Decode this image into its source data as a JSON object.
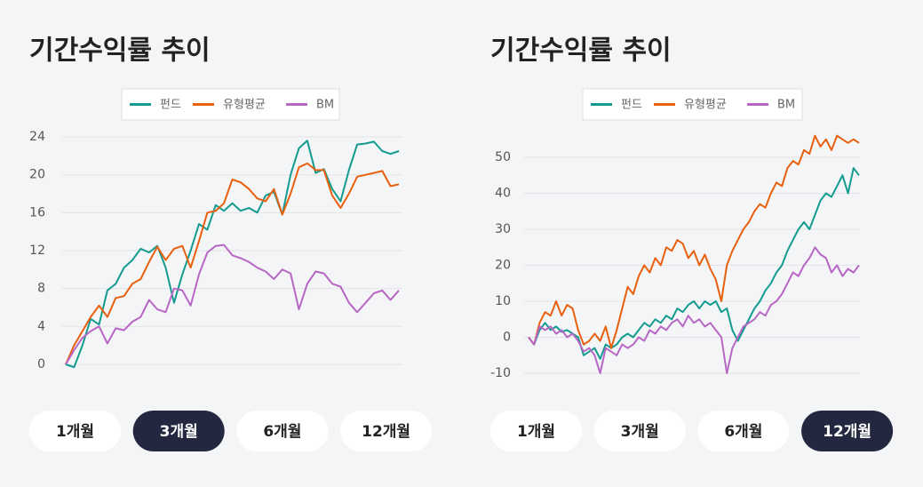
{
  "chart_data": [
    {
      "type": "line",
      "title": "기간수익률 추이",
      "categories": [
        null,
        null,
        null,
        null,
        null,
        null,
        null,
        null,
        null,
        null,
        null,
        null,
        null,
        null,
        null,
        null,
        null,
        null,
        null,
        null,
        null,
        null,
        null,
        null,
        null,
        null,
        null,
        null,
        null,
        null,
        null,
        null,
        null,
        null,
        null,
        null,
        null,
        null,
        null,
        null,
        null
      ],
      "series": [
        {
          "name": "펀드",
          "color": "#139b8f",
          "values": [
            0,
            -0.3,
            2,
            4.8,
            4.2,
            7.8,
            8.5,
            10.2,
            11,
            12.2,
            11.8,
            12.5,
            10.2,
            6.5,
            9.5,
            12,
            14.8,
            14.2,
            16.8,
            16.2,
            17,
            16.2,
            16.5,
            16,
            17.8,
            18.2,
            15.8,
            20,
            22.8,
            23.6,
            20.2,
            20.6,
            18.5,
            17.2,
            20.5,
            23.2,
            23.3,
            23.5,
            22.5,
            22.2,
            22.5
          ]
        },
        {
          "name": "유형평균",
          "color": "#e8600e",
          "values": [
            0,
            2,
            3.5,
            5,
            6.2,
            5,
            7,
            7.2,
            8.5,
            9,
            10.8,
            12.4,
            11,
            12.2,
            12.5,
            10.2,
            13,
            16,
            16.2,
            17,
            19.5,
            19.2,
            18.5,
            17.5,
            17.2,
            18.5,
            15.8,
            18,
            20.8,
            21.2,
            20.5,
            20.5,
            17.8,
            16.5,
            18,
            19.8,
            20,
            20.2,
            20.4,
            18.8,
            19
          ]
        },
        {
          "name": "BM",
          "color": "#b766c4",
          "values": [
            0,
            1.5,
            2.8,
            3.5,
            4,
            2.2,
            3.8,
            3.6,
            4.5,
            5,
            6.8,
            5.8,
            5.5,
            8,
            7.8,
            6.2,
            9.5,
            11.8,
            12.5,
            12.6,
            11.5,
            11.2,
            10.8,
            10.2,
            9.8,
            9,
            10,
            9.6,
            5.8,
            8.5,
            9.8,
            9.6,
            8.5,
            8.2,
            6.5,
            5.5,
            6.5,
            7.5,
            7.8,
            6.8,
            7.8
          ]
        }
      ],
      "ylim": [
        -0.5,
        24.5
      ],
      "yticks": [
        0,
        4,
        8,
        12,
        16,
        20,
        24
      ],
      "grid": true,
      "legend": "top"
    },
    {
      "type": "line",
      "title": "기간수익률 추이",
      "categories": [
        null,
        null,
        null,
        null,
        null,
        null,
        null,
        null,
        null,
        null,
        null,
        null,
        null,
        null,
        null,
        null,
        null,
        null,
        null,
        null,
        null,
        null,
        null,
        null,
        null,
        null,
        null,
        null,
        null,
        null,
        null,
        null,
        null,
        null,
        null,
        null,
        null,
        null,
        null,
        null,
        null,
        null,
        null,
        null,
        null,
        null,
        null,
        null,
        null,
        null,
        null,
        null,
        null,
        null,
        null,
        null,
        null,
        null,
        null,
        null,
        null
      ],
      "series": [
        {
          "name": "펀드",
          "color": "#139b8f",
          "values": [
            0,
            -2,
            2,
            4,
            2,
            3,
            1.5,
            2,
            1,
            0,
            -5,
            -4,
            -3,
            -6,
            -2,
            -3,
            -2,
            0,
            1,
            0,
            2,
            4,
            3,
            5,
            4,
            6,
            5,
            8,
            7,
            9,
            10,
            8,
            10,
            9,
            10,
            7,
            8,
            2,
            -1,
            2,
            5,
            8,
            10,
            13,
            15,
            18,
            20,
            24,
            27,
            30,
            32,
            30,
            34,
            38,
            40,
            39,
            42,
            45,
            40,
            47,
            45
          ]
        },
        {
          "name": "유형평균",
          "color": "#e8600e",
          "values": [
            0,
            -2,
            4,
            7,
            6,
            10,
            6,
            9,
            8,
            2,
            -2,
            -1,
            1,
            -1,
            3,
            -3,
            2,
            8,
            14,
            12,
            17,
            20,
            18,
            22,
            20,
            25,
            24,
            27,
            26,
            22,
            24,
            20,
            23,
            19,
            16,
            10,
            20,
            24,
            27,
            30,
            32,
            35,
            37,
            36,
            40,
            43,
            42,
            47,
            49,
            48,
            52,
            51,
            56,
            53,
            55,
            52,
            56,
            55,
            54,
            55,
            54
          ]
        },
        {
          "name": "BM",
          "color": "#b766c4",
          "values": [
            0,
            -2,
            3,
            2,
            3,
            1,
            2,
            0,
            1,
            -1,
            -4,
            -3,
            -5,
            -10,
            -3,
            -4,
            -5,
            -2,
            -3,
            -2,
            0,
            -1,
            2,
            1,
            3,
            2,
            4,
            5,
            3,
            6,
            4,
            5,
            3,
            4,
            2,
            0,
            -10,
            -3,
            0,
            3,
            4,
            5,
            7,
            6,
            9,
            10,
            12,
            15,
            18,
            17,
            20,
            22,
            25,
            23,
            22,
            18,
            20,
            17,
            19,
            18,
            20
          ]
        }
      ],
      "ylim": [
        -12,
        58
      ],
      "yticks": [
        -10,
        0,
        10,
        20,
        30,
        40,
        50
      ],
      "grid": true,
      "legend": "top"
    }
  ],
  "period_tabs": [
    {
      "options": [
        "1개월",
        "3개월",
        "6개월",
        "12개월"
      ],
      "selected": 1
    },
    {
      "options": [
        "1개월",
        "3개월",
        "6개월",
        "12개월"
      ],
      "selected": 3
    }
  ]
}
